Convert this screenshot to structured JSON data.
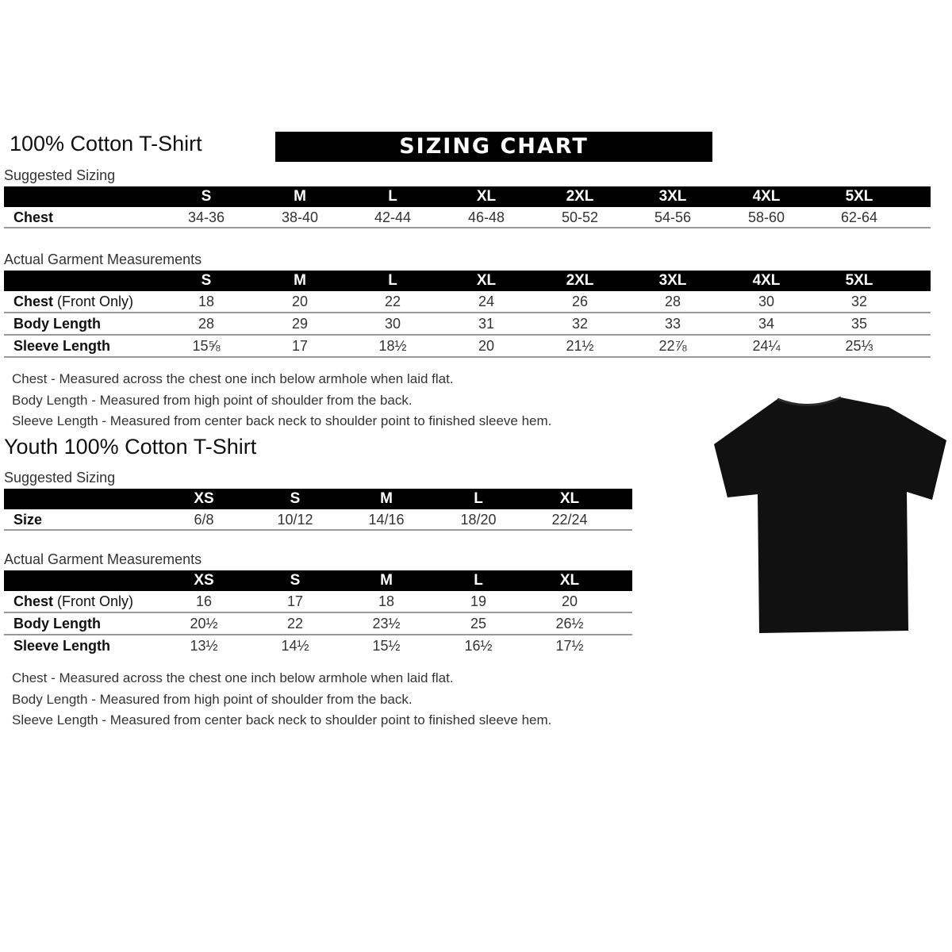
{
  "adult": {
    "title": "100% Cotton T-Shirt",
    "banner": "SIZING CHART",
    "suggested_label": "Suggested Sizing",
    "sizes": [
      "S",
      "M",
      "L",
      "XL",
      "2XL",
      "3XL",
      "4XL",
      "5XL"
    ],
    "suggested_rows": [
      {
        "label": "Chest",
        "note": "",
        "values": [
          "34-36",
          "38-40",
          "42-44",
          "46-48",
          "50-52",
          "54-56",
          "58-60",
          "62-64"
        ]
      }
    ],
    "actual_label": "Actual Garment Measurements",
    "actual_rows": [
      {
        "label": "Chest",
        "note": " (Front Only)",
        "values": [
          "18",
          "20",
          "22",
          "24",
          "26",
          "28",
          "30",
          "32"
        ]
      },
      {
        "label": "Body Length",
        "note": "",
        "values": [
          "28",
          "29",
          "30",
          "31",
          "32",
          "33",
          "34",
          "35"
        ]
      },
      {
        "label": "Sleeve Length",
        "note": "",
        "values": [
          "15⅝",
          "17",
          "18½",
          "20",
          "21½",
          "22⅞",
          "24¼",
          "25⅓"
        ]
      }
    ],
    "notes": [
      "Chest - Measured across the chest one inch below armhole when laid flat.",
      "Body Length - Measured from high point of shoulder from the back.",
      "Sleeve Length - Measured from center back neck to shoulder point to finished sleeve hem."
    ]
  },
  "youth": {
    "title": "Youth 100% Cotton T-Shirt",
    "suggested_label": "Suggested Sizing",
    "sizes": [
      "XS",
      "S",
      "M",
      "L",
      "XL"
    ],
    "suggested_rows": [
      {
        "label": "Size",
        "note": "",
        "values": [
          "6/8",
          "10/12",
          "14/16",
          "18/20",
          "22/24"
        ]
      }
    ],
    "actual_label": "Actual Garment Measurements",
    "actual_rows": [
      {
        "label": "Chest",
        "note": " (Front Only)",
        "values": [
          "16",
          "17",
          "18",
          "19",
          "20"
        ]
      },
      {
        "label": "Body Length",
        "note": "",
        "values": [
          "20½",
          "22",
          "23½",
          "25",
          "26½"
        ]
      },
      {
        "label": "Sleeve Length",
        "note": "",
        "values": [
          "13½",
          "14½",
          "15½",
          "16½",
          "17½"
        ]
      }
    ],
    "notes": [
      "Chest - Measured across the chest one inch below armhole when laid flat.",
      "Body Length - Measured from high point of shoulder from the back.",
      "Sleeve Length - Measured from center back neck to shoulder point to finished sleeve hem."
    ]
  },
  "colors": {
    "header": "#000000",
    "shirt": "#111111",
    "rule": "#999999"
  }
}
